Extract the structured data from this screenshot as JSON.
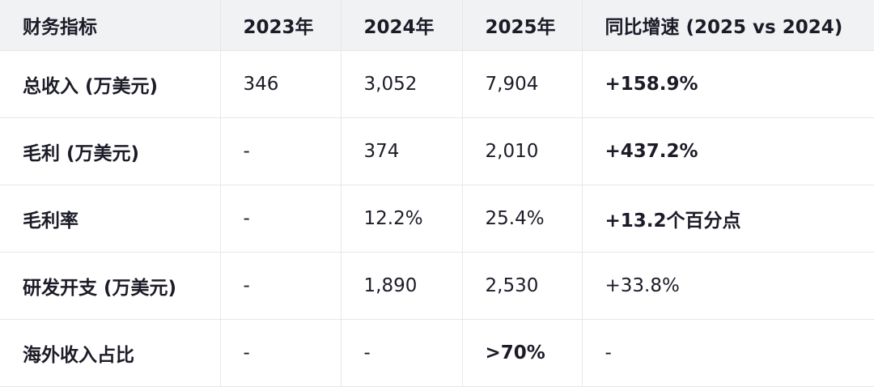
{
  "headers": [
    "财务指标",
    "2023年",
    "2024年",
    "2025年",
    "同比增速 (2025 vs 2024)"
  ],
  "rows": [
    {
      "cells": [
        "总收入 (万美元)",
        "346",
        "3,052",
        "7,904",
        "+158.9%"
      ],
      "bold": [
        true,
        false,
        false,
        false,
        true
      ]
    },
    {
      "cells": [
        "毛利 (万美元)",
        "-",
        "374",
        "2,010",
        "+437.2%"
      ],
      "bold": [
        true,
        false,
        false,
        false,
        true
      ]
    },
    {
      "cells": [
        "毛利率",
        "-",
        "12.2%",
        "25.4%",
        "+13.2个百分点"
      ],
      "bold": [
        true,
        false,
        false,
        false,
        true
      ]
    },
    {
      "cells": [
        "研发开支 (万美元)",
        "-",
        "1,890",
        "2,530",
        "+33.8%"
      ],
      "bold": [
        true,
        false,
        false,
        false,
        false
      ]
    },
    {
      "cells": [
        "海外收入占比",
        "-",
        "-",
        ">70%",
        "-"
      ],
      "bold": [
        true,
        false,
        false,
        true,
        false
      ]
    }
  ]
}
